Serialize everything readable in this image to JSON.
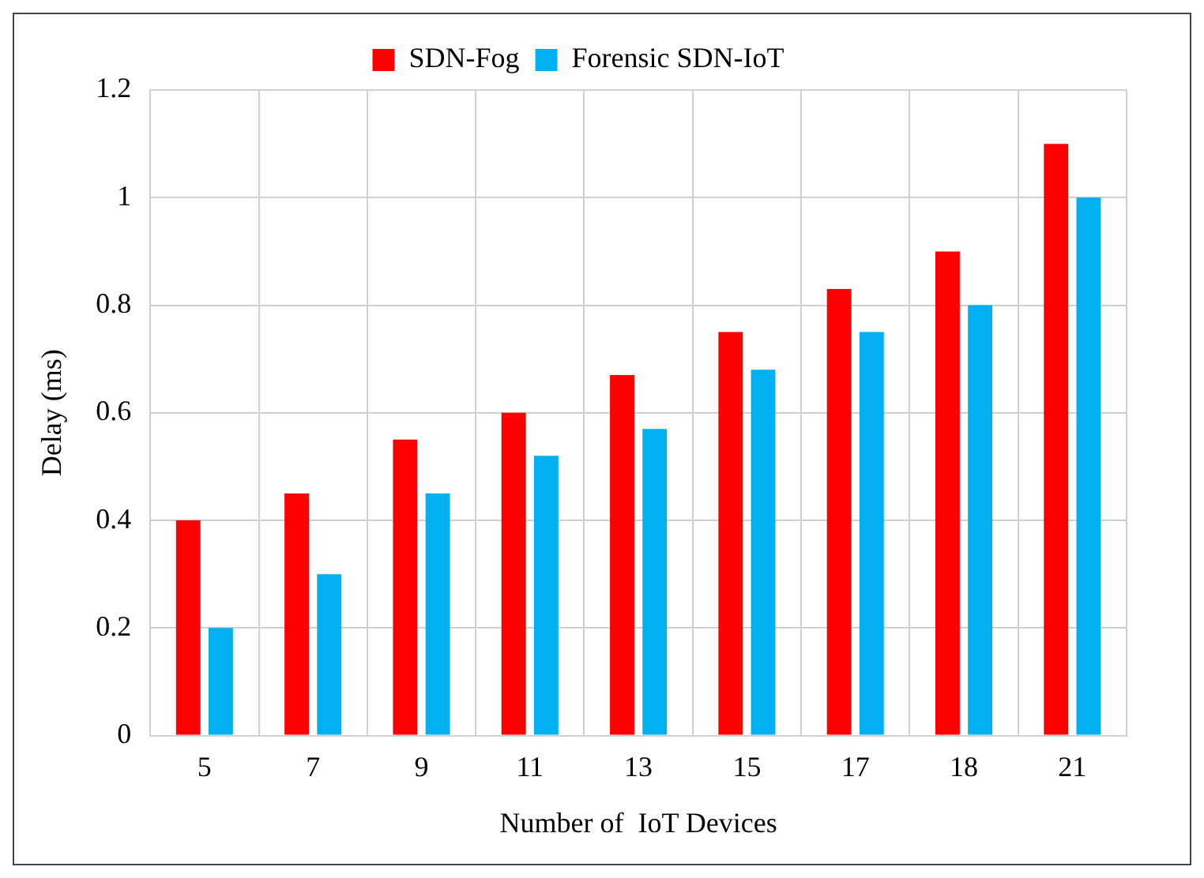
{
  "chart_data": {
    "type": "bar",
    "xlabel": "Number of  IoT Devices",
    "ylabel": "Delay (ms)",
    "categories": [
      "5",
      "7",
      "9",
      "11",
      "13",
      "15",
      "17",
      "18",
      "21"
    ],
    "series": [
      {
        "name": "SDN-Fog",
        "color": "#ff0000",
        "values": [
          0.4,
          0.45,
          0.55,
          0.6,
          0.67,
          0.75,
          0.83,
          0.9,
          1.1
        ]
      },
      {
        "name": "Forensic SDN-IoT",
        "color": "#00b0f0",
        "values": [
          0.2,
          0.3,
          0.45,
          0.52,
          0.57,
          0.68,
          0.75,
          0.8,
          1.0
        ]
      }
    ],
    "ylim": [
      0,
      1.2
    ],
    "yticks": [
      0,
      0.2,
      0.4,
      0.6,
      0.8,
      1,
      1.2
    ],
    "grid": true,
    "legend": "top"
  }
}
